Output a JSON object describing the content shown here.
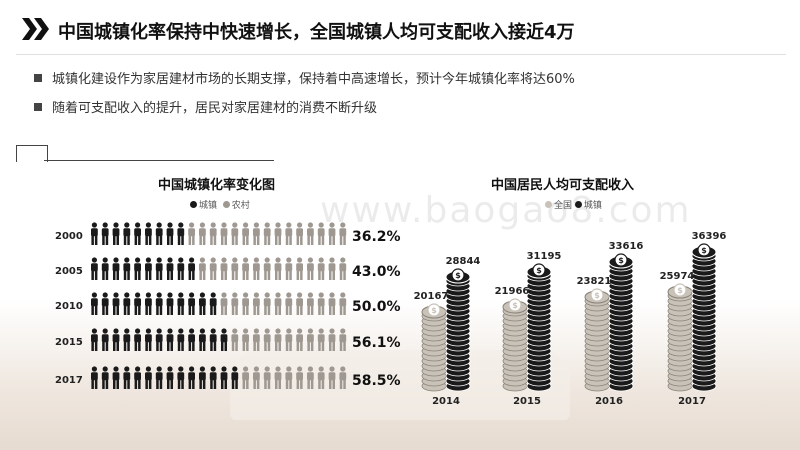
{
  "header": {
    "title": "中国城镇化率保持中快速增长，全国城镇人均可支配收入接近4万"
  },
  "bullets": [
    "城镇化建设作为家居建材市场的长期支撑，保持着中高速增长，预计今年城镇化率将达60%",
    "随着可支配收入的提升，居民对家居建材的消费不断升级"
  ],
  "watermark": "www.baogao8.com",
  "colors": {
    "urban": "#1a1a1a",
    "rural": "#9e9891",
    "national_coin": "#c9c2b8",
    "urban_coin": "#1a1a1a"
  },
  "chart_data": [
    {
      "type": "bar",
      "title": "中国城镇化率变化图",
      "legend": [
        "城镇",
        "农村"
      ],
      "categories": [
        "2000",
        "2005",
        "2010",
        "2015",
        "2017"
      ],
      "series": [
        {
          "name": "城镇",
          "values": [
            36.2,
            43.0,
            50.0,
            56.1,
            58.5
          ]
        }
      ],
      "value_labels": [
        "36.2%",
        "43.0%",
        "50.0%",
        "56.1%",
        "58.5%"
      ],
      "icons_per_row": 24
    },
    {
      "type": "bar",
      "title": "中国居民人均可支配收入",
      "legend": [
        "全国",
        "城镇"
      ],
      "categories": [
        "2014",
        "2015",
        "2016",
        "2017"
      ],
      "series": [
        {
          "name": "全国",
          "values": [
            20167,
            21966,
            23821,
            25974
          ]
        },
        {
          "name": "城镇",
          "values": [
            28844,
            31195,
            33616,
            36396
          ]
        }
      ]
    }
  ]
}
